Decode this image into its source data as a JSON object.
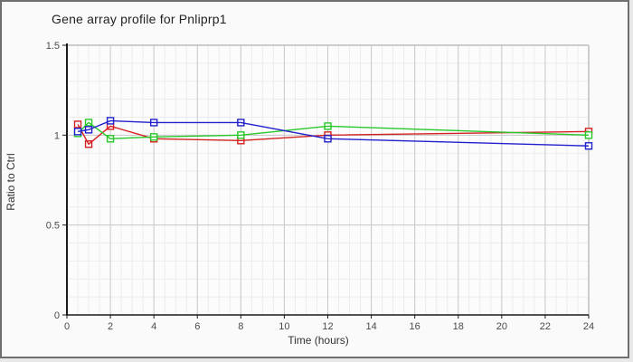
{
  "chart_data": {
    "type": "line",
    "title": "Gene array profile for Pnliprp1",
    "xlabel": "Time (hours)",
    "ylabel": "Ratio to Ctrl",
    "xlim": [
      0,
      24
    ],
    "ylim": [
      0,
      1.5
    ],
    "x_major_ticks": [
      0,
      2,
      4,
      6,
      8,
      10,
      12,
      14,
      16,
      18,
      20,
      22,
      24
    ],
    "y_major_ticks": [
      0,
      0.5,
      1,
      1.5
    ],
    "x_minor_step": 0.5,
    "y_minor_step": 0.1,
    "grid": "on",
    "legend": "none",
    "marker": "open-square",
    "x": [
      0.5,
      1,
      2,
      4,
      8,
      12,
      24
    ],
    "series": [
      {
        "name": "series-red",
        "color": "#d42020",
        "values": [
          1.06,
          0.95,
          1.05,
          0.98,
          0.97,
          1.0,
          1.02
        ]
      },
      {
        "name": "series-green",
        "color": "#28c828",
        "values": [
          1.01,
          1.07,
          0.98,
          0.99,
          1.0,
          1.05,
          1.0
        ]
      },
      {
        "name": "series-blue",
        "color": "#2020cc",
        "values": [
          1.02,
          1.03,
          1.08,
          1.07,
          1.07,
          0.98,
          0.94
        ]
      }
    ],
    "colors": {
      "plot_bg": "#fcfcfc",
      "outer_bg": "#fafafa",
      "minor_grid": "#ececec",
      "major_grid": "#c9c9c9",
      "plot_border": "#bdbdbd",
      "axis_line": "#1a1a1a",
      "tick_label": "#4a4a4a"
    }
  }
}
